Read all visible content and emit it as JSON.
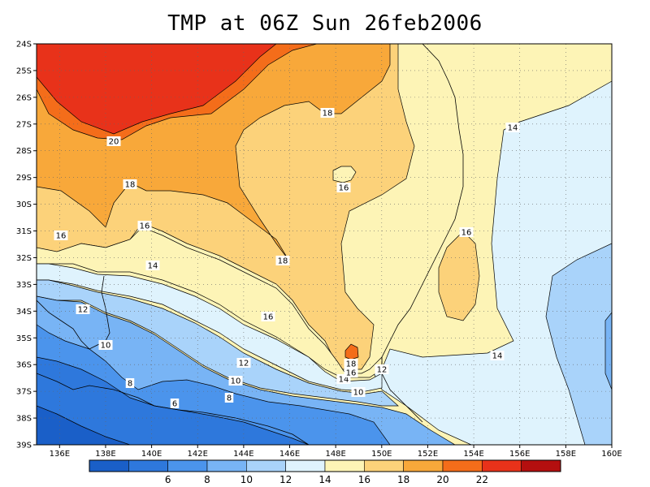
{
  "title": "TMP at 06Z Sun 26feb2006",
  "lat_labels": [
    "24S",
    "25S",
    "26S",
    "27S",
    "28S",
    "29S",
    "30S",
    "31S",
    "32S",
    "33S",
    "34S",
    "35S",
    "36S",
    "37S",
    "38S",
    "39S"
  ],
  "lon_labels": [
    "136E",
    "138E",
    "140E",
    "142E",
    "144E",
    "146E",
    "148E",
    "150E",
    "152E",
    "154E",
    "156E",
    "158E",
    "160E"
  ],
  "colorbar": {
    "ticks": [
      "6",
      "8",
      "10",
      "12",
      "14",
      "16",
      "18",
      "20",
      "22"
    ],
    "colors": [
      "#1a5fc8",
      "#2e78dc",
      "#4b94ec",
      "#78b4f5",
      "#a9d3fa",
      "#dff3fd",
      "#fdf4b6",
      "#fcd27a",
      "#f8a83a",
      "#f46d1a",
      "#e8321a",
      "#b40f0f"
    ]
  },
  "contour_labels": [
    {
      "text": "20"
    },
    {
      "text": "18"
    },
    {
      "text": "18"
    },
    {
      "text": "18"
    },
    {
      "text": "16"
    },
    {
      "text": "16"
    },
    {
      "text": "16"
    },
    {
      "text": "16"
    },
    {
      "text": "16"
    },
    {
      "text": "14"
    },
    {
      "text": "14"
    },
    {
      "text": "14"
    },
    {
      "text": "14"
    },
    {
      "text": "12"
    },
    {
      "text": "12"
    },
    {
      "text": "12"
    },
    {
      "text": "10"
    },
    {
      "text": "10"
    },
    {
      "text": "10"
    },
    {
      "text": "8"
    },
    {
      "text": "8"
    },
    {
      "text": "6"
    },
    {
      "text": "18"
    },
    {
      "text": "16"
    }
  ]
}
